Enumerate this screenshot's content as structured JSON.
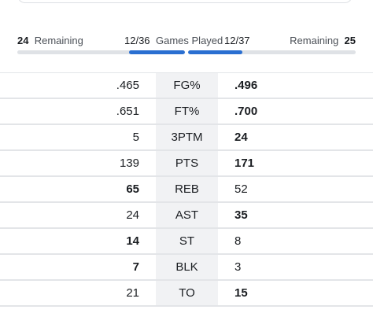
{
  "games_played": {
    "left_remaining_label": "Remaining",
    "left_remaining_value": "24",
    "left_played": "12/36",
    "title": "Games Played",
    "right_played": "12/37",
    "right_remaining_label": "Remaining",
    "right_remaining_value": "25",
    "left_progress_fraction": 0.333,
    "right_progress_fraction": 0.324,
    "accent_color": "#2a6fd1"
  },
  "stats": [
    {
      "category": "FG%",
      "left": ".465",
      "right": ".496",
      "winner": "right"
    },
    {
      "category": "FT%",
      "left": ".651",
      "right": ".700",
      "winner": "right"
    },
    {
      "category": "3PTM",
      "left": "5",
      "right": "24",
      "winner": "right"
    },
    {
      "category": "PTS",
      "left": "139",
      "right": "171",
      "winner": "right"
    },
    {
      "category": "REB",
      "left": "65",
      "right": "52",
      "winner": "left"
    },
    {
      "category": "AST",
      "left": "24",
      "right": "35",
      "winner": "right"
    },
    {
      "category": "ST",
      "left": "14",
      "right": "8",
      "winner": "left"
    },
    {
      "category": "BLK",
      "left": "7",
      "right": "3",
      "winner": "left"
    },
    {
      "category": "TO",
      "left": "21",
      "right": "15",
      "winner": "right"
    }
  ]
}
